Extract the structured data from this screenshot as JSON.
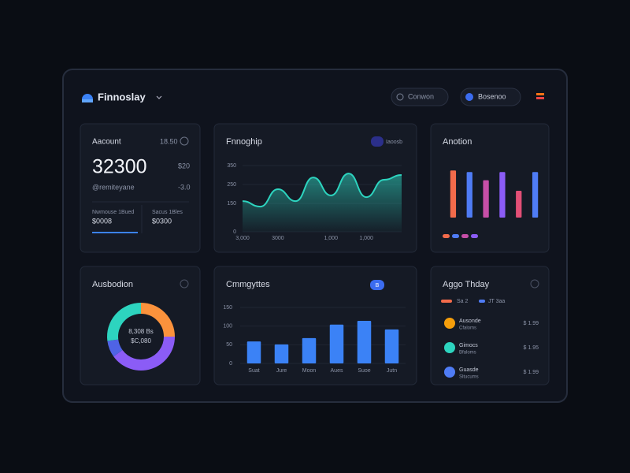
{
  "header": {
    "brand": "Finnoslay",
    "button_1": "Conwon",
    "button_2": "Bosenoo"
  },
  "account_card": {
    "title": "Aacount",
    "badge": "18.50",
    "value": "32300",
    "delta": "$20",
    "subtitle": "@remiteyane",
    "sub_delta": "-3.0",
    "stat_1_label": "Nwmouse 1Bued",
    "stat_1_value": "$0008",
    "stat_2_label": "Sacus 1Bles",
    "stat_2_value": "$0300"
  },
  "activity_card": {
    "title": "Aggo Thday",
    "legend_1": "Sa 2",
    "legend_2": "JT 3aa",
    "rows": [
      {
        "name": "Ausonde",
        "sub": "Cfaloms",
        "amount": "$ 1.99"
      },
      {
        "name": "Gimocs",
        "sub": "Bfaloms",
        "amount": "$ 1.95"
      },
      {
        "name": "Guasde",
        "sub": "Sltucums",
        "amount": "$ 1.99"
      }
    ]
  },
  "chart_data": [
    {
      "type": "area",
      "title": "Fnnoghip",
      "badge": "Iaoosb",
      "categories": [
        "3,000",
        null,
        "3000",
        null,
        null,
        "1,000",
        null,
        "1,000",
        null,
        null
      ],
      "series": [
        {
          "name": "Fnnoghip",
          "color": "#2dd4bf",
          "values": [
            162,
            133,
            225,
            162,
            287,
            192,
            308,
            183,
            275,
            300
          ]
        }
      ],
      "ylim": [
        0,
        350
      ],
      "yticks": [
        0,
        150,
        250,
        350
      ]
    },
    {
      "type": "bar",
      "title": "Anotion",
      "categories": [
        null,
        null,
        null,
        null,
        null,
        null
      ],
      "values": [
        58,
        56,
        46,
        56,
        33,
        56
      ],
      "colors": [
        "#f26b4b",
        "#4f7cf5",
        "#c74fa8",
        "#8b5cf6",
        "#e24f76",
        "#4f7cf5"
      ],
      "ylim": [
        0,
        66
      ]
    },
    {
      "type": "pie",
      "title": "Ausbodion",
      "center_labels": [
        "8,308 Bs",
        "$C,080"
      ],
      "values": [
        25,
        40,
        8,
        27
      ],
      "colors": [
        "#fb923c",
        "#8b5cf6",
        "#4f63e6",
        "#2dd4bf"
      ]
    },
    {
      "type": "bar",
      "title": "Cmmgyttes",
      "badge": "B",
      "categories": [
        "Suat",
        "Jure",
        "Moon",
        "Aues",
        "Suoe",
        "Jutn"
      ],
      "values": [
        59,
        51,
        68,
        104,
        114,
        91
      ],
      "color": "#3b82f6",
      "ylim": [
        0,
        150
      ],
      "yticks": [
        0,
        50,
        100,
        150
      ]
    }
  ]
}
